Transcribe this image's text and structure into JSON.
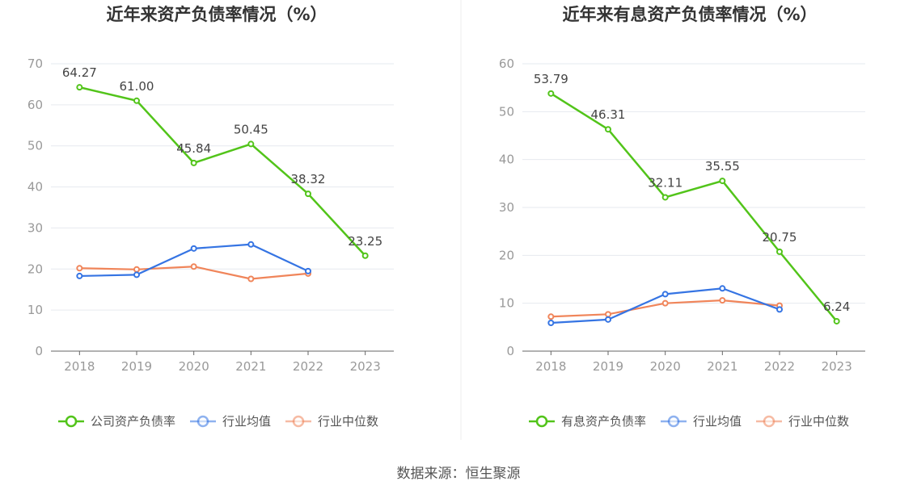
{
  "source_text": "数据来源：恒生聚源",
  "chart_data": [
    {
      "type": "line",
      "title": "近年来资产负债率情况（%）",
      "x": [
        "2018",
        "2019",
        "2020",
        "2021",
        "2022",
        "2023"
      ],
      "ylim": [
        0,
        70
      ],
      "yticks": [
        0,
        10,
        20,
        30,
        40,
        50,
        60,
        70
      ],
      "grid": true,
      "legend_position": "bottom",
      "series": [
        {
          "name": "公司资产负债率",
          "color": "#52c41a",
          "labels": true,
          "values": [
            64.27,
            61.0,
            45.84,
            50.45,
            38.32,
            23.25
          ]
        },
        {
          "name": "行业均值",
          "color": "#3574e3",
          "labels": false,
          "values": [
            18.3,
            18.6,
            25.0,
            26.0,
            19.5,
            null
          ]
        },
        {
          "name": "行业中位数",
          "color": "#f0855a",
          "labels": false,
          "values": [
            20.2,
            19.9,
            20.6,
            17.6,
            18.9,
            null
          ]
        }
      ]
    },
    {
      "type": "line",
      "title": "近年来有息资产负债率情况（%）",
      "x": [
        "2018",
        "2019",
        "2020",
        "2021",
        "2022",
        "2023"
      ],
      "ylim": [
        0,
        60
      ],
      "yticks": [
        0,
        10,
        20,
        30,
        40,
        50,
        60
      ],
      "grid": true,
      "legend_position": "bottom",
      "series": [
        {
          "name": "有息资产负债率",
          "color": "#52c41a",
          "labels": true,
          "values": [
            53.79,
            46.31,
            32.11,
            35.55,
            20.75,
            6.24
          ]
        },
        {
          "name": "行业均值",
          "color": "#3574e3",
          "labels": false,
          "values": [
            5.9,
            6.6,
            11.9,
            13.1,
            8.7,
            null
          ]
        },
        {
          "name": "行业中位数",
          "color": "#f0855a",
          "labels": false,
          "values": [
            7.2,
            7.7,
            10.0,
            10.6,
            9.5,
            null
          ]
        }
      ]
    }
  ]
}
